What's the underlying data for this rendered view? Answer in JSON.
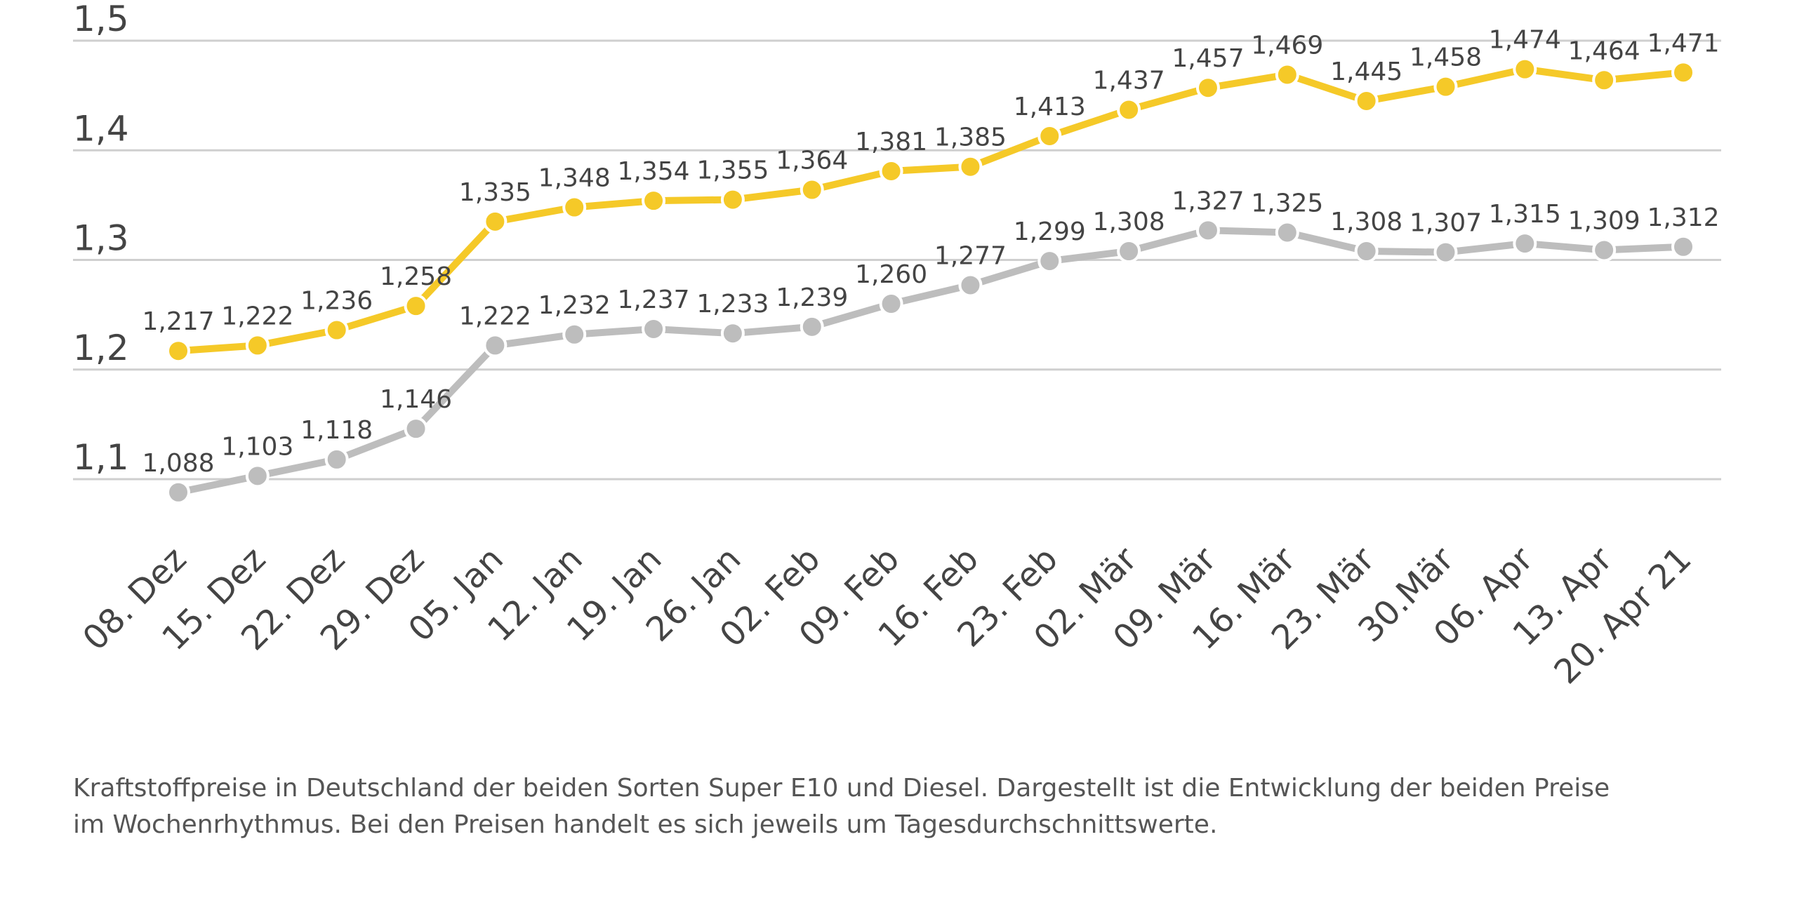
{
  "chart_data": {
    "type": "line",
    "categories": [
      "08. Dez",
      "15. Dez",
      "22. Dez",
      "29. Dez",
      "05. Jan",
      "12. Jan",
      "19. Jan",
      "26. Jan",
      "02. Feb",
      "09. Feb",
      "16. Feb",
      "23. Feb",
      "02. Mär",
      "09. Mär",
      "16. Mär",
      "23. Mär",
      "30.Mär",
      "06. Apr",
      "13. Apr",
      "20. Apr 21"
    ],
    "series": [
      {
        "color": "#f5c928",
        "values": [
          1.217,
          1.222,
          1.236,
          1.258,
          1.335,
          1.348,
          1.354,
          1.355,
          1.364,
          1.381,
          1.385,
          1.413,
          1.437,
          1.457,
          1.469,
          1.445,
          1.458,
          1.474,
          1.464,
          1.471
        ],
        "value_labels": [
          "1,217",
          "1,222",
          "1,236",
          "1,258",
          "1,335",
          "1,348",
          "1,354",
          "1,355",
          "1,364",
          "1,381",
          "1,385",
          "1,413",
          "1,437",
          "1,457",
          "1,469",
          "1,445",
          "1,458",
          "1,474",
          "1,464",
          "1,471"
        ]
      },
      {
        "color": "#bdbdbd",
        "values": [
          1.088,
          1.103,
          1.118,
          1.146,
          1.222,
          1.232,
          1.237,
          1.233,
          1.239,
          1.26,
          1.277,
          1.299,
          1.308,
          1.327,
          1.325,
          1.308,
          1.307,
          1.315,
          1.309,
          1.312
        ],
        "value_labels": [
          "1,088",
          "1,103",
          "1,118",
          "1,146",
          "1,222",
          "1,232",
          "1,237",
          "1,233",
          "1,239",
          "1,260",
          "1,277",
          "1,299",
          "1,308",
          "1,327",
          "1,325",
          "1,308",
          "1,307",
          "1,315",
          "1,309",
          "1,312"
        ]
      }
    ],
    "ylim": [
      1.1,
      1.5
    ],
    "yticks": [
      {
        "value": 1.1,
        "label": "1,1"
      },
      {
        "value": 1.2,
        "label": "1,2"
      },
      {
        "value": 1.3,
        "label": "1,3"
      },
      {
        "value": 1.4,
        "label": "1,4"
      },
      {
        "value": 1.5,
        "label": "1,5"
      }
    ],
    "grid": true,
    "caption": "Kraftstoffpreise in Deutschland der beiden Sorten Super E10 und Diesel. Dargestellt ist die Entwicklung der beiden Preise im Wochenrhythmus. Bei den Preisen handelt es sich jeweils um Tagesdurchschnittswerte."
  }
}
